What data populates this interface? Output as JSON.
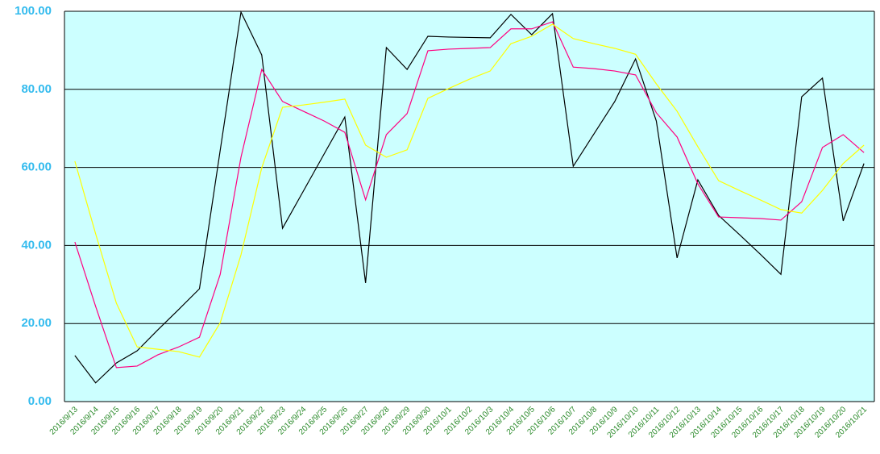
{
  "chart_data": {
    "type": "line",
    "categories": [
      "2016/9/13",
      "2016/9/14",
      "2016/9/15",
      "2016/9/16",
      "2016/9/17",
      "2016/9/18",
      "2016/9/19",
      "2016/9/20",
      "2016/9/21",
      "2016/9/22",
      "2016/9/23",
      "2016/9/24",
      "2016/9/25",
      "2016/9/26",
      "2016/9/27",
      "2016/9/28",
      "2016/9/29",
      "2016/9/30",
      "2016/10/1",
      "2016/10/2",
      "2016/10/3",
      "2016/10/4",
      "2016/10/5",
      "2016/10/6",
      "2016/10/7",
      "2016/10/8",
      "2016/10/9",
      "2016/10/10",
      "2016/10/11",
      "2016/10/12",
      "2016/10/13",
      "2016/10/14",
      "2016/10/15",
      "2016/10/16",
      "2016/10/17",
      "2016/10/18",
      "2016/10/19",
      "2016/10/20",
      "2016/10/21"
    ],
    "series": [
      {
        "color": "#000000",
        "values": [
          11.8,
          4.8,
          9.9,
          13,
          18.4,
          23.6,
          28.9,
          64.4,
          99.8,
          88.8,
          44.4,
          53.9,
          63.4,
          72.9,
          30.4,
          90.7,
          85.1,
          93.6,
          93.4,
          93.3,
          93.2,
          99.2,
          94,
          99.4,
          60.3,
          68.6,
          76.9,
          87.8,
          71.9,
          36.8,
          56.8,
          47.7,
          42.8,
          37.8,
          32.6,
          78.1,
          82.9,
          46.3,
          61
        ]
      },
      {
        "color": "#ff0080",
        "values": [
          40.9,
          24.4,
          8.7,
          9.1,
          12,
          14,
          16.5,
          32.6,
          62.6,
          85.1,
          76.9,
          74.4,
          71.9,
          69,
          51.7,
          68.4,
          73.8,
          89.9,
          90.3,
          90.5,
          90.7,
          95.5,
          95.5,
          97.3,
          85.7,
          85.3,
          84.7,
          83.7,
          74,
          67.8,
          55.8,
          47.3,
          47.1,
          46.9,
          46.5,
          51.2,
          65.1,
          68.4,
          63.8
        ]
      },
      {
        "color": "#ffff00",
        "values": [
          61.6,
          43,
          25.2,
          14,
          13.4,
          12.8,
          11.4,
          20.2,
          37.6,
          59.9,
          75.4,
          76,
          76.7,
          77.5,
          65.7,
          62.6,
          64.5,
          77.7,
          80.2,
          82.6,
          84.7,
          91.7,
          93.6,
          96.7,
          93,
          91.7,
          90.5,
          89,
          81.4,
          74.4,
          65.3,
          56.6,
          54.1,
          51.7,
          49.2,
          48.3,
          54.1,
          61,
          65.7
        ]
      }
    ],
    "ylim": [
      0,
      100
    ],
    "yticks": [
      {
        "value": 0,
        "label": "0.00"
      },
      {
        "value": 20,
        "label": "20.00"
      },
      {
        "value": 40,
        "label": "40.00"
      },
      {
        "value": 60,
        "label": "60.00"
      },
      {
        "value": 80,
        "label": "80.00"
      },
      {
        "value": 100,
        "label": "100.00"
      }
    ],
    "grid": true,
    "background": "#ccffff"
  }
}
